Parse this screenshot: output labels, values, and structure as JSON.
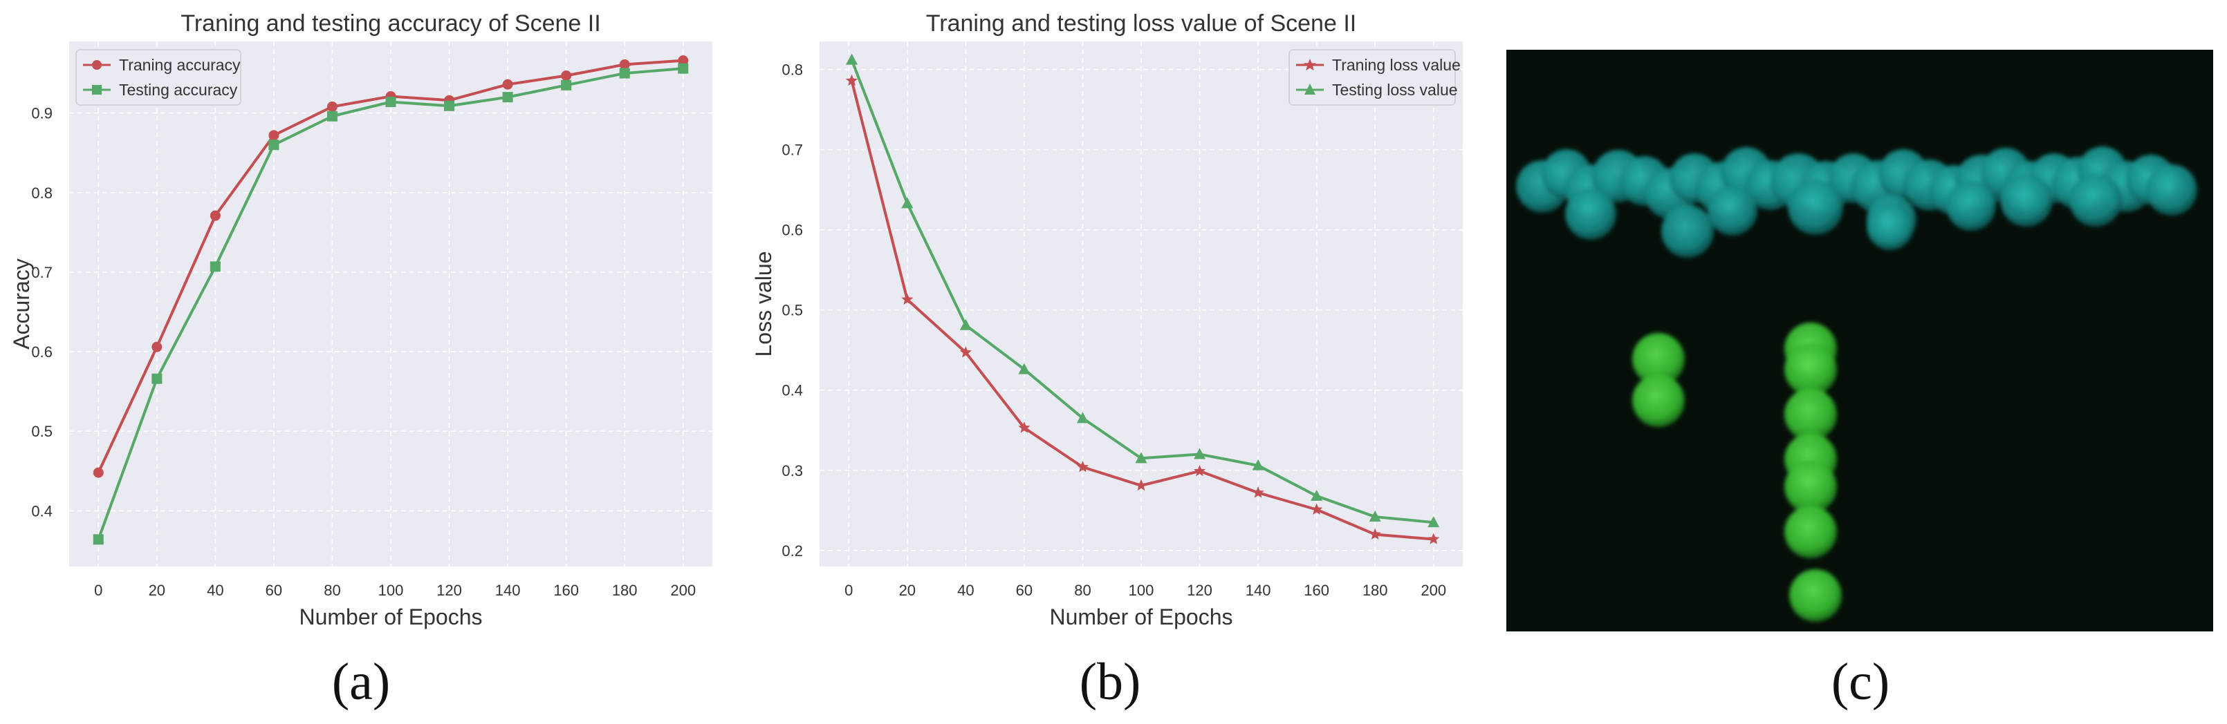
{
  "figure": {
    "captions": [
      "(a)",
      "(b)",
      "(c)"
    ],
    "panel_c": {
      "description_icon": "point-cloud-render",
      "colors": {
        "background": "#061009",
        "cyan": "#1a9e9a",
        "green": "#3cc43c"
      }
    }
  },
  "colors": {
    "red": "#c44e52",
    "green": "#55a868",
    "plot_bg": "#eaeaf2",
    "grid": "#ffffff"
  },
  "chart_data": [
    {
      "type": "line",
      "title": "Traning and testing accuracy of Scene II",
      "xlabel": "Number of Epochs",
      "ylabel": "Accuracy",
      "xlim": [
        -10,
        210
      ],
      "ylim": [
        0.33,
        0.99
      ],
      "xticks": [
        0,
        20,
        40,
        60,
        80,
        100,
        120,
        140,
        160,
        180,
        200
      ],
      "yticks": [
        0.4,
        0.5,
        0.6,
        0.7,
        0.8,
        0.9
      ],
      "legend_position": "top-left",
      "grid": true,
      "x": [
        0,
        20,
        40,
        60,
        80,
        100,
        120,
        140,
        160,
        180,
        200
      ],
      "series": [
        {
          "name": "Traning accuracy",
          "color": "#c44e52",
          "marker": "circle",
          "values": [
            0.448,
            0.606,
            0.771,
            0.872,
            0.908,
            0.921,
            0.916,
            0.936,
            0.947,
            0.961,
            0.966
          ]
        },
        {
          "name": "Testing accuracy",
          "color": "#55a868",
          "marker": "square",
          "values": [
            0.364,
            0.566,
            0.707,
            0.86,
            0.896,
            0.914,
            0.909,
            0.92,
            0.935,
            0.95,
            0.956
          ]
        }
      ]
    },
    {
      "type": "line",
      "title": "Traning and testing loss value of Scene II",
      "xlabel": "Number of Epochs",
      "ylabel": "Loss value",
      "xlim": [
        -10,
        210
      ],
      "ylim": [
        0.18,
        0.835
      ],
      "xticks": [
        0,
        20,
        40,
        60,
        80,
        100,
        120,
        140,
        160,
        180,
        200
      ],
      "yticks": [
        0.2,
        0.3,
        0.4,
        0.5,
        0.6,
        0.7,
        0.8
      ],
      "legend_position": "top-right",
      "grid": true,
      "x": [
        1,
        20,
        40,
        60,
        80,
        100,
        120,
        140,
        160,
        180,
        200
      ],
      "series": [
        {
          "name": "Traning loss value",
          "color": "#c44e52",
          "marker": "star",
          "values": [
            0.786,
            0.513,
            0.447,
            0.353,
            0.304,
            0.281,
            0.299,
            0.272,
            0.251,
            0.22,
            0.214
          ]
        },
        {
          "name": "Testing loss value",
          "color": "#55a868",
          "marker": "triangle",
          "values": [
            0.812,
            0.633,
            0.481,
            0.426,
            0.365,
            0.315,
            0.32,
            0.306,
            0.268,
            0.242,
            0.235
          ]
        }
      ]
    }
  ]
}
